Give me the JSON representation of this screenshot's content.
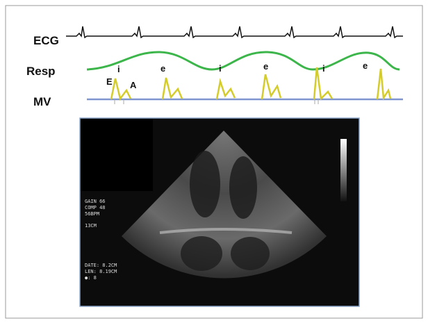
{
  "traces": {
    "ecg": "ECG",
    "resp": "Resp",
    "mv": "MV"
  },
  "annotations": [
    "E",
    "i",
    "A",
    "e",
    "i",
    "e",
    "i",
    "e"
  ],
  "echo_overlay": [
    "GAIN 66",
    "COMP 48",
    "56BPM",
    "13CM",
    "DATE: 8.2CM",
    "LEN: 8.19CM",
    "●: 8"
  ]
}
